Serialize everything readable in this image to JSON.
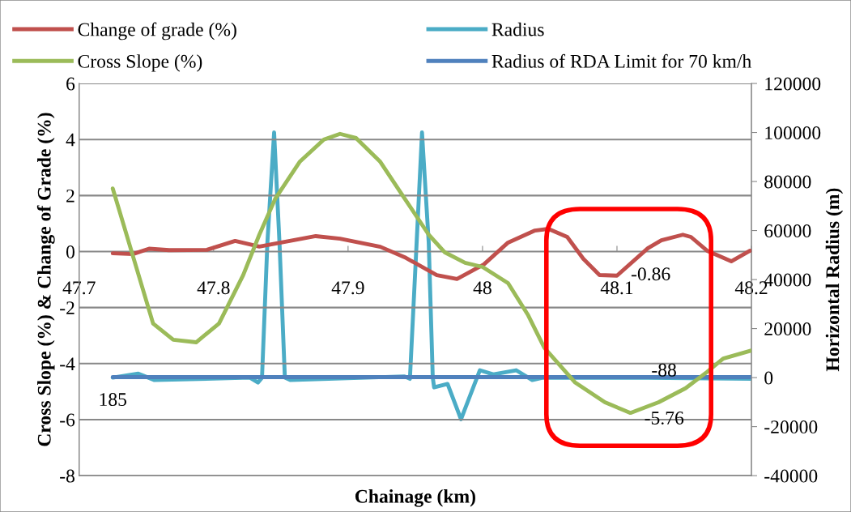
{
  "chart_data": {
    "type": "line",
    "xlabel": "Chainage (km)",
    "ylabel": "Cross Slope (%) & Change of Grade (%)",
    "y2label": "Horizontal Radius (m)",
    "xlim": [
      47.7,
      48.2
    ],
    "xticks": [
      47.7,
      47.8,
      47.9,
      48,
      48.1,
      48.2
    ],
    "ylim": [
      -8,
      6
    ],
    "yticks": [
      -8,
      -6,
      -4,
      -2,
      0,
      2,
      4,
      6
    ],
    "y2lim": [
      -40000,
      120000
    ],
    "y2ticks": [
      -40000,
      -20000,
      0,
      20000,
      40000,
      60000,
      80000,
      100000,
      120000
    ],
    "grid": "y",
    "legend": "top",
    "line_style": "solid",
    "marker": "none",
    "series": [
      {
        "name": "Change of grade (%)",
        "color": "#c0504d",
        "x": [
          47.725,
          47.74,
          47.752,
          47.767,
          47.795,
          47.816,
          47.834,
          47.876,
          47.894,
          47.924,
          47.942,
          47.966,
          47.981,
          48.001,
          48.019,
          48.039,
          48.049,
          48.063,
          48.075,
          48.087,
          48.1,
          48.123,
          48.133,
          48.149,
          48.155,
          48.167,
          48.185,
          48.199
        ],
        "values": [
          -0.06,
          -0.09,
          0.1,
          0.05,
          0.06,
          0.38,
          0.18,
          0.55,
          0.46,
          0.17,
          -0.2,
          -0.84,
          -0.98,
          -0.46,
          0.32,
          0.75,
          0.81,
          0.52,
          -0.26,
          -0.84,
          -0.86,
          0.12,
          0.4,
          0.6,
          0.52,
          0.03,
          -0.35,
          0.03
        ]
      },
      {
        "name": "Radius",
        "color": "#4bacc6",
        "axis": "y2",
        "x": [
          47.725,
          47.744,
          47.756,
          47.827,
          47.833,
          47.836,
          47.84,
          47.845,
          47.849,
          47.853,
          47.857,
          47.942,
          47.946,
          47.951,
          47.955,
          47.96,
          47.963,
          47.964,
          47.974,
          47.984,
          47.998,
          48.008,
          48.025,
          48.037,
          48.045,
          48.123,
          48.2
        ],
        "values": [
          0,
          1600,
          -1000,
          0,
          -2000,
          0,
          55000,
          100000,
          55000,
          0,
          -1000,
          500,
          -500,
          55000,
          100000,
          55000,
          0,
          -4000,
          -2600,
          -17000,
          3000,
          1300,
          3000,
          -1000,
          0,
          -88,
          -500
        ]
      },
      {
        "name": "Cross Slope (%)",
        "color": "#9bbb59",
        "x": [
          47.725,
          47.755,
          47.77,
          47.787,
          47.804,
          47.822,
          47.834,
          47.846,
          47.864,
          47.882,
          47.894,
          47.906,
          47.924,
          47.942,
          47.96,
          47.972,
          47.987,
          48.0,
          48.019,
          48.034,
          48.046,
          48.069,
          48.091,
          48.11,
          48.131,
          48.151,
          48.167,
          48.179,
          48.2
        ],
        "values": [
          2.25,
          -2.57,
          -3.15,
          -3.24,
          -2.57,
          -0.84,
          0.6,
          1.9,
          3.2,
          4.0,
          4.2,
          4.05,
          3.2,
          1.9,
          0.6,
          -0.03,
          -0.4,
          -0.55,
          -1.13,
          -2.28,
          -3.44,
          -4.68,
          -5.38,
          -5.76,
          -5.38,
          -4.88,
          -4.3,
          -3.82,
          -3.53
        ]
      },
      {
        "name": "Radius of RDA Limit for 70 km/h",
        "color": "#4f81bd",
        "axis": "y2",
        "x": [
          47.725,
          48.2
        ],
        "values": [
          185,
          185
        ]
      }
    ],
    "annotations": [
      "185",
      "-88",
      {
        "text": "-0.86",
        "x": 48.1,
        "y": -0.86
      },
      {
        "text": "-5.76",
        "x": 48.11,
        "y": -5.76
      }
    ]
  }
}
